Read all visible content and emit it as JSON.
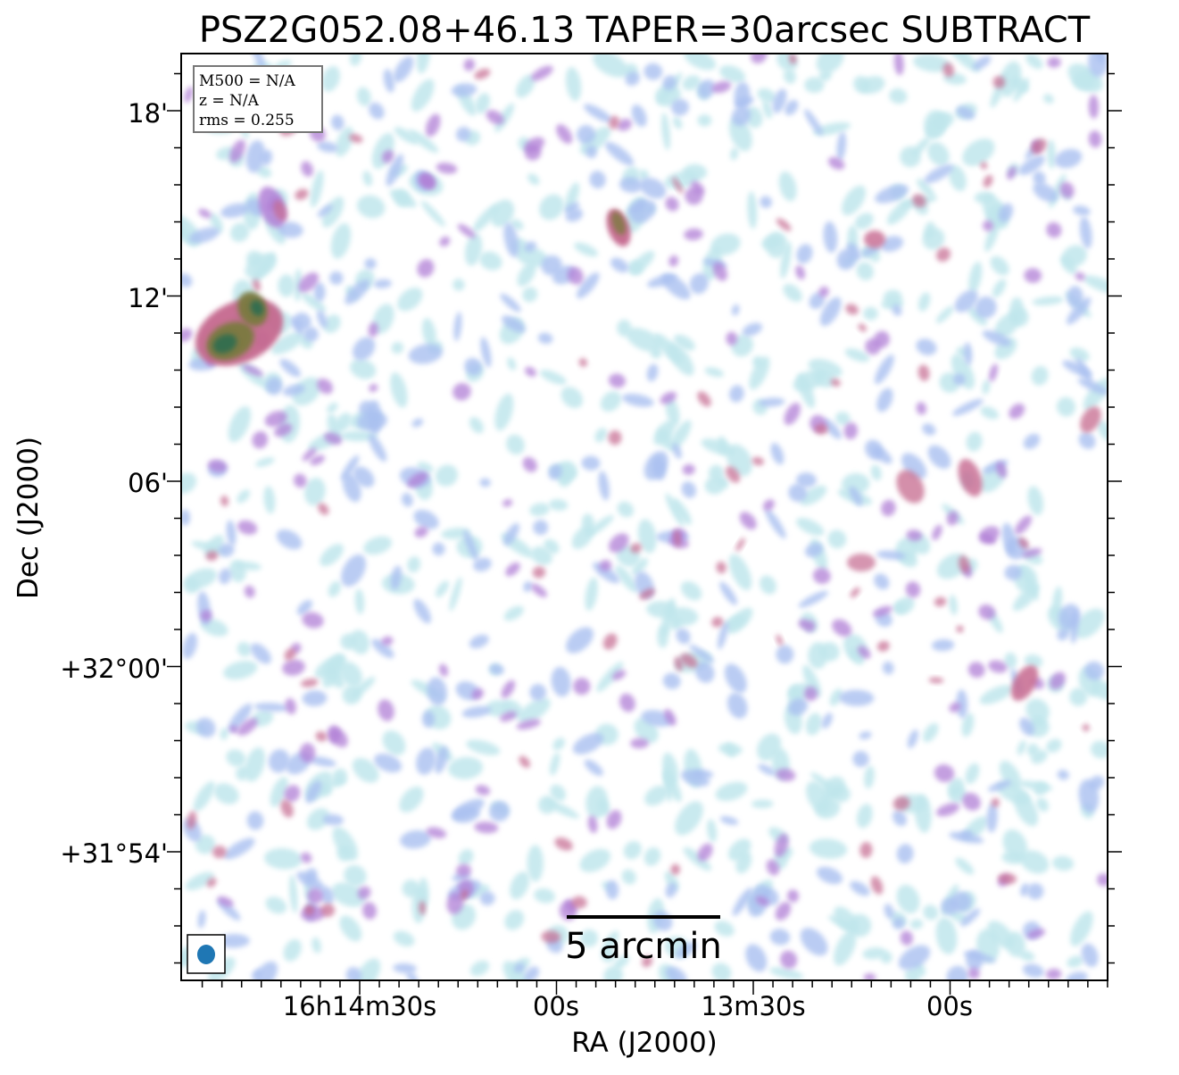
{
  "title": "PSZ2G052.08+46.13 TAPER=30arcsec SUBTRACT",
  "xlabel": "RA (J2000)",
  "ylabel": "Dec (J2000)",
  "x_ticks": [
    "16h14m30s",
    "00s",
    "13m30s",
    "00s"
  ],
  "y_ticks": [
    "18'",
    "12'",
    "06'",
    "+32°00'",
    "+31°54'"
  ],
  "info_box": {
    "line1": "M500 = N/A",
    "line2": "z = N/A",
    "line3": "rms = 0.255"
  },
  "scalebar_label": "5 arcmin",
  "colors": {
    "faint": "#bfe6ec",
    "low": "#a9bff0",
    "mid": "#b07fd6",
    "high": "#c5688e",
    "peak": "#7a7a3e",
    "core": "#2f6d50",
    "beam": "#1f77b4"
  }
}
